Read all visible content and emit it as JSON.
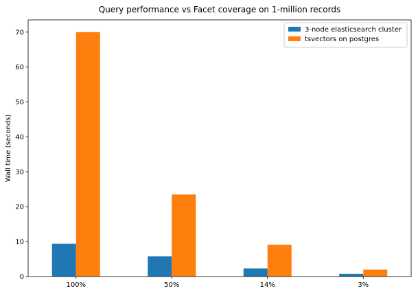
{
  "chart_data": {
    "type": "bar",
    "title": "Query performance vs Facet coverage on 1-million records",
    "xlabel": "",
    "ylabel": "Wall time (seconds)",
    "categories": [
      "100%",
      "50%",
      "14%",
      "3%"
    ],
    "series": [
      {
        "name": "3-node elasticsearch cluster",
        "color": "#1f77b4",
        "values": [
          9.4,
          5.8,
          2.3,
          0.8
        ]
      },
      {
        "name": "tsvectors on postgres",
        "color": "#ff7f0e",
        "values": [
          70.0,
          23.5,
          9.1,
          2.0
        ]
      }
    ],
    "ylim": [
      0,
      73.5
    ],
    "yticks": [
      "0",
      "10",
      "20",
      "30",
      "40",
      "50",
      "60",
      "70"
    ],
    "legend_position": "top-right",
    "grid": false
  }
}
